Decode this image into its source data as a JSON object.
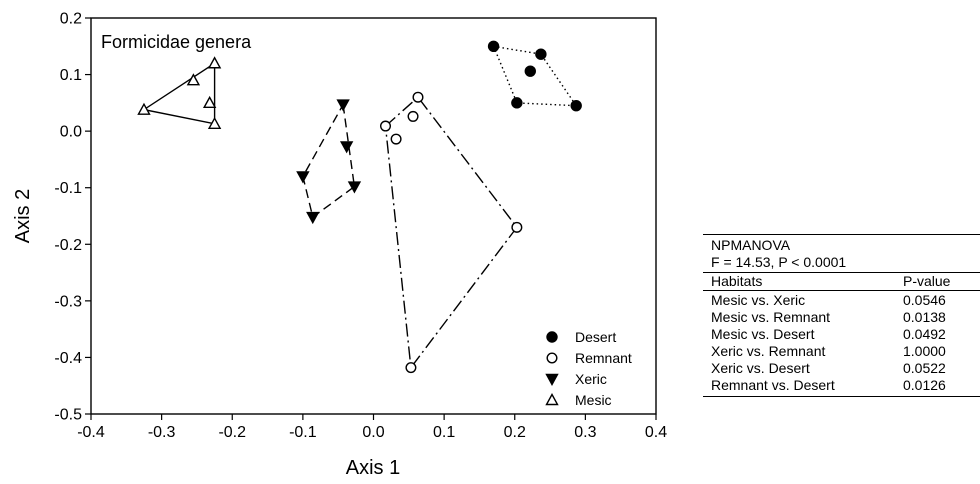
{
  "chart_data": {
    "type": "scatter",
    "title": "Formicidae genera",
    "xlabel": "Axis 1",
    "ylabel": "Axis 2",
    "xlim": [
      -0.4,
      0.4
    ],
    "ylim": [
      -0.5,
      0.2
    ],
    "xticks": [
      "-0.4",
      "-0.3",
      "-0.2",
      "-0.1",
      "0.0",
      "0.1",
      "0.2",
      "0.3",
      "0.4"
    ],
    "yticks": [
      "0.2",
      "0.1",
      "0.0",
      "-0.1",
      "-0.2",
      "-0.3",
      "-0.4",
      "-0.5"
    ],
    "legend_position": "bottom-right",
    "grid": false,
    "series": [
      {
        "name": "Desert",
        "marker": "filled-circle",
        "line": "dotted",
        "points": [
          [
            0.17,
            0.15
          ],
          [
            0.237,
            0.136
          ],
          [
            0.222,
            0.106
          ],
          [
            0.203,
            0.05
          ],
          [
            0.287,
            0.045
          ]
        ],
        "hull": [
          [
            0.17,
            0.15
          ],
          [
            0.237,
            0.136
          ],
          [
            0.287,
            0.045
          ],
          [
            0.203,
            0.05
          ]
        ]
      },
      {
        "name": "Remnant",
        "marker": "open-circle",
        "line": "dash-dot",
        "points": [
          [
            0.017,
            0.009
          ],
          [
            0.032,
            -0.014
          ],
          [
            0.063,
            0.06
          ],
          [
            0.056,
            0.026
          ],
          [
            0.203,
            -0.17
          ],
          [
            0.053,
            -0.418
          ]
        ],
        "hull": [
          [
            0.017,
            0.009
          ],
          [
            0.063,
            0.06
          ],
          [
            0.203,
            -0.17
          ],
          [
            0.053,
            -0.418
          ]
        ]
      },
      {
        "name": "Xeric",
        "marker": "filled-triangle-down",
        "line": "dashed",
        "points": [
          [
            -0.043,
            0.047
          ],
          [
            -0.038,
            -0.027
          ],
          [
            -0.1,
            -0.08
          ],
          [
            -0.027,
            -0.098
          ],
          [
            -0.086,
            -0.152
          ]
        ],
        "hull": [
          [
            -0.043,
            0.047
          ],
          [
            -0.027,
            -0.098
          ],
          [
            -0.086,
            -0.152
          ],
          [
            -0.1,
            -0.08
          ]
        ]
      },
      {
        "name": "Mesic",
        "marker": "open-triangle-up",
        "line": "solid",
        "points": [
          [
            -0.225,
            0.12
          ],
          [
            -0.255,
            0.09
          ],
          [
            -0.232,
            0.05
          ],
          [
            -0.225,
            0.013
          ],
          [
            -0.325,
            0.038
          ]
        ],
        "hull": [
          [
            -0.225,
            0.12
          ],
          [
            -0.225,
            0.013
          ],
          [
            -0.325,
            0.038
          ]
        ]
      }
    ]
  },
  "stats": {
    "line1": "NPMANOVA",
    "line2": "F = 14.53, P < 0.0001",
    "headers": [
      "Habitats",
      "P-value"
    ],
    "rows": [
      [
        "Mesic vs. Xeric",
        "0.0546"
      ],
      [
        "Mesic vs. Remnant",
        "0.0138"
      ],
      [
        "Mesic vs. Desert",
        "0.0492"
      ],
      [
        "Xeric vs. Remnant",
        "1.0000"
      ],
      [
        "Xeric vs. Desert",
        "0.0522"
      ],
      [
        "Remnant vs. Desert",
        "0.0126"
      ]
    ]
  }
}
